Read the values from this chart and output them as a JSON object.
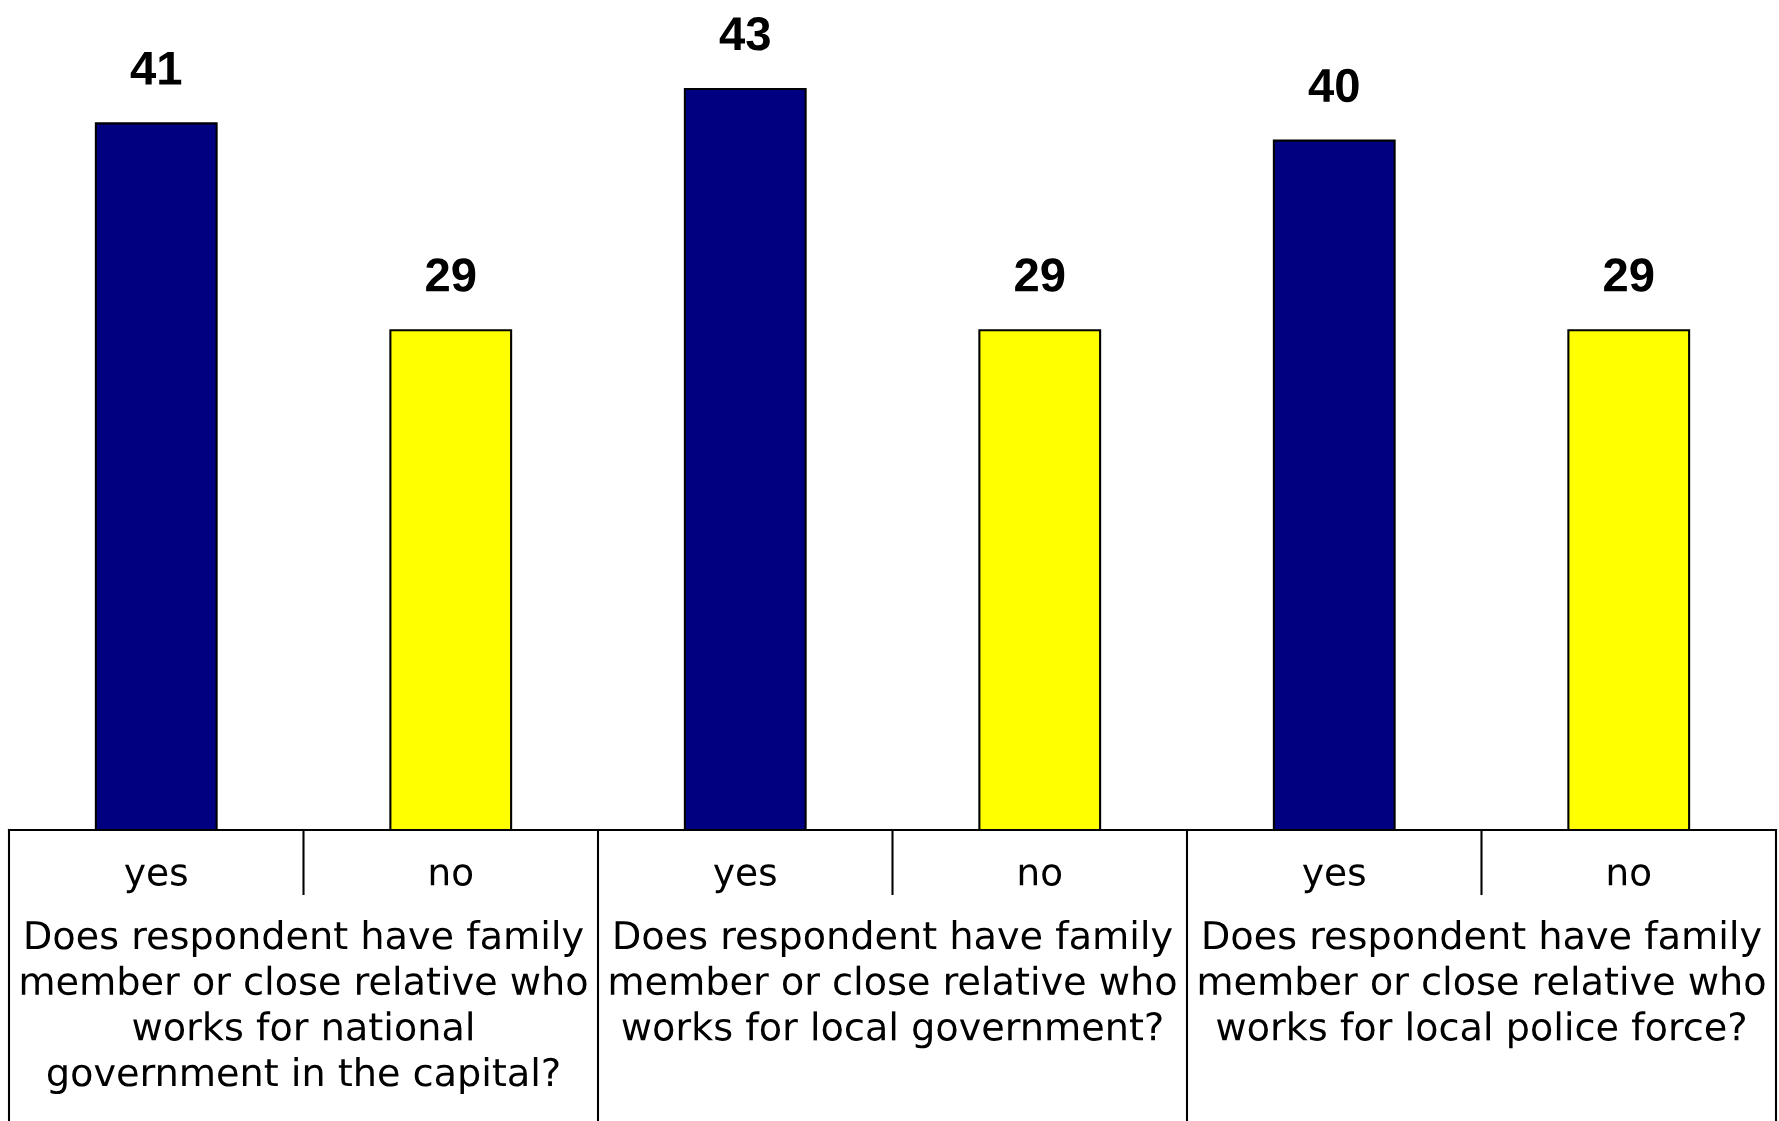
{
  "chart_data": {
    "type": "bar",
    "categories": [
      "Does respondent have family\nmember or close relative who\nworks for national\ngovernment in the capital?",
      "Does respondent have family\nmember or close relative who\nworks for local government?",
      "Does respondent have family\nmember or close relative who\nworks for local police force?"
    ],
    "series": [
      {
        "name": "yes",
        "color": "#000080",
        "values": [
          41,
          43,
          40
        ]
      },
      {
        "name": "no",
        "color": "#ffff00",
        "values": [
          29,
          29,
          29
        ]
      }
    ],
    "data_labels": true
  }
}
